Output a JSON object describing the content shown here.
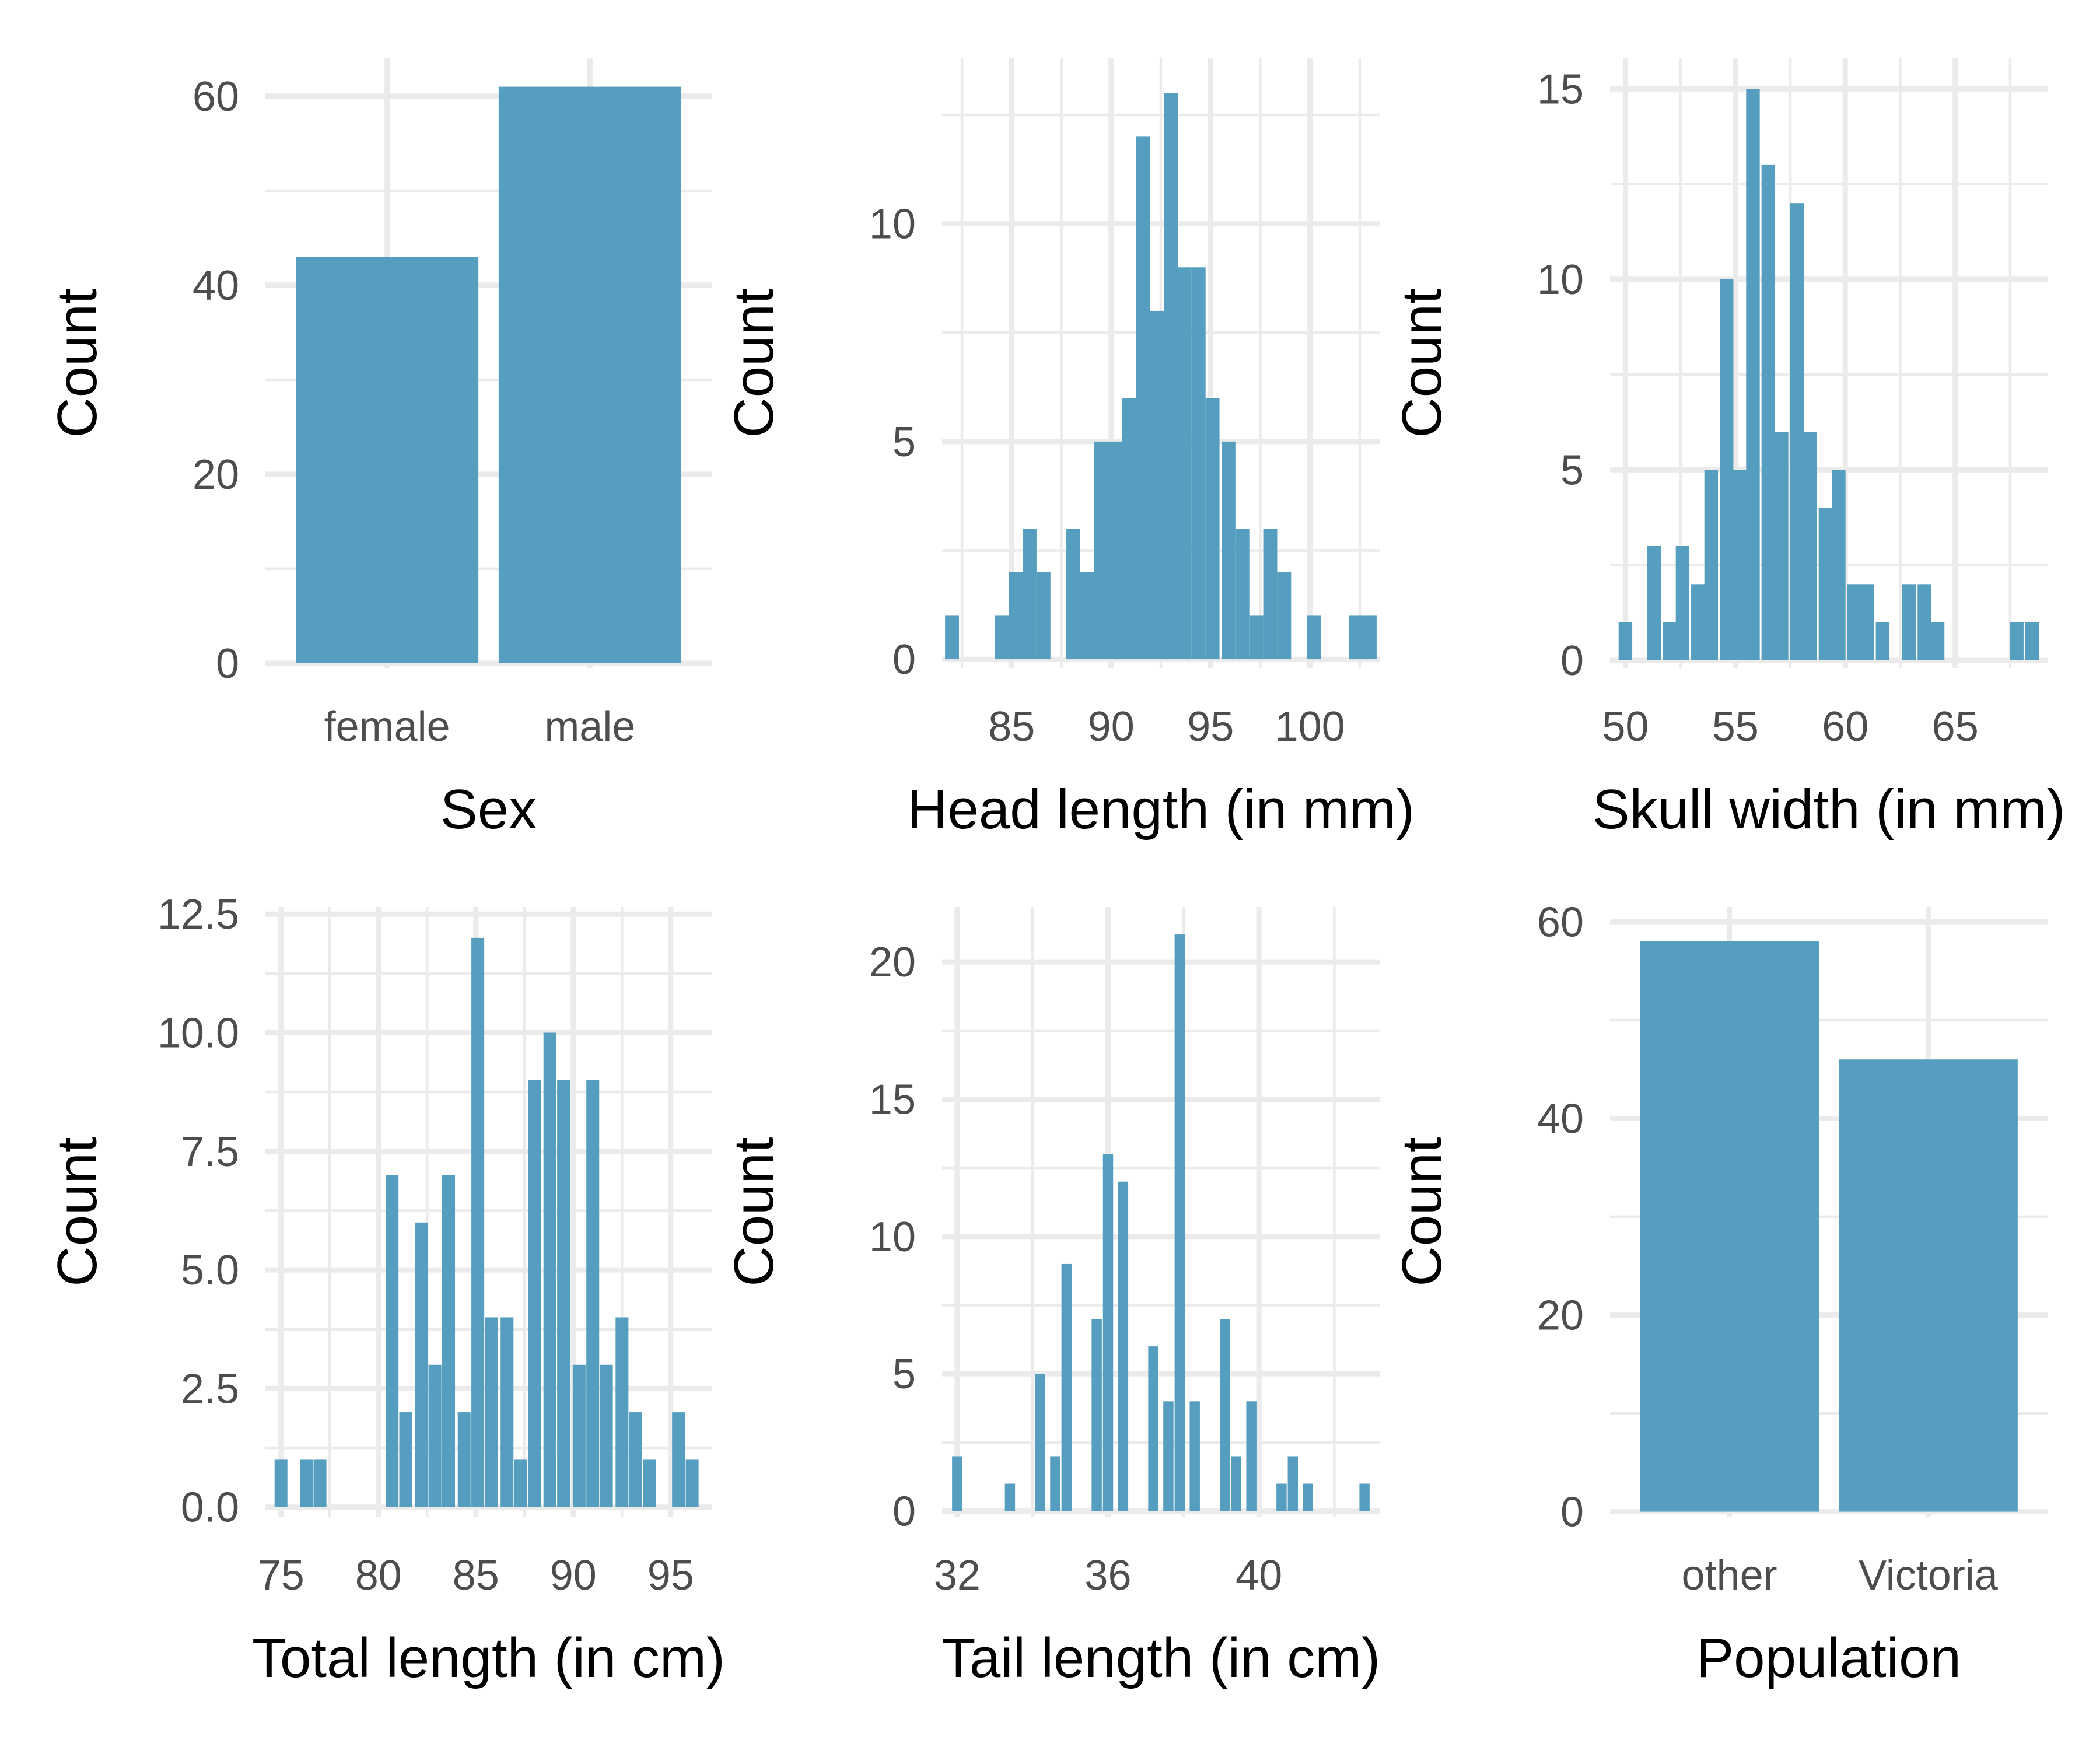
{
  "chart_data": [
    {
      "type": "bar",
      "xlabel": "Sex",
      "ylabel": "Count",
      "categories": [
        "female",
        "male"
      ],
      "values": [
        43,
        61
      ],
      "ylim": [
        -0.5,
        64
      ],
      "yticks": [
        0,
        20,
        40,
        60
      ],
      "yticklabels": [
        "0",
        "20",
        "40",
        "60"
      ],
      "grid": true
    },
    {
      "type": "bar",
      "subtype": "histogram",
      "xlabel": "Head length (in mm)",
      "ylabel": "Count",
      "bins": [
        {
          "x": 82.0,
          "count": 1
        },
        {
          "x": 84.5,
          "count": 1
        },
        {
          "x": 85.2,
          "count": 2
        },
        {
          "x": 85.9,
          "count": 3
        },
        {
          "x": 86.6,
          "count": 2
        },
        {
          "x": 88.1,
          "count": 3
        },
        {
          "x": 88.8,
          "count": 2
        },
        {
          "x": 89.5,
          "count": 5
        },
        {
          "x": 90.2,
          "count": 5
        },
        {
          "x": 90.9,
          "count": 6
        },
        {
          "x": 91.6,
          "count": 12
        },
        {
          "x": 92.3,
          "count": 8
        },
        {
          "x": 93.0,
          "count": 13
        },
        {
          "x": 93.7,
          "count": 9
        },
        {
          "x": 94.4,
          "count": 9
        },
        {
          "x": 95.1,
          "count": 6
        },
        {
          "x": 95.9,
          "count": 5
        },
        {
          "x": 96.6,
          "count": 3
        },
        {
          "x": 97.3,
          "count": 1
        },
        {
          "x": 98.0,
          "count": 3
        },
        {
          "x": 98.7,
          "count": 2
        },
        {
          "x": 100.2,
          "count": 1
        },
        {
          "x": 102.3,
          "count": 1
        },
        {
          "x": 103.0,
          "count": 1
        }
      ],
      "bin_width": 0.7,
      "xlim": [
        81.5,
        103.5
      ],
      "ylim": [
        -0.2,
        13.8
      ],
      "xticks": [
        85,
        90,
        95,
        100
      ],
      "xticklabels": [
        "85",
        "90",
        "95",
        "100"
      ],
      "yticks": [
        0,
        5,
        10
      ],
      "yticklabels": [
        "0",
        "5",
        "10"
      ],
      "grid": true
    },
    {
      "type": "bar",
      "subtype": "histogram",
      "xlabel": "Skull width (in mm)",
      "ylabel": "Count",
      "bins": [
        {
          "x": 50.0,
          "count": 1
        },
        {
          "x": 51.3,
          "count": 3
        },
        {
          "x": 52.0,
          "count": 1
        },
        {
          "x": 52.6,
          "count": 3
        },
        {
          "x": 53.3,
          "count": 2
        },
        {
          "x": 53.9,
          "count": 5
        },
        {
          "x": 54.6,
          "count": 10
        },
        {
          "x": 55.2,
          "count": 5
        },
        {
          "x": 55.8,
          "count": 15
        },
        {
          "x": 56.5,
          "count": 13
        },
        {
          "x": 57.1,
          "count": 6
        },
        {
          "x": 57.8,
          "count": 12
        },
        {
          "x": 58.4,
          "count": 6
        },
        {
          "x": 59.1,
          "count": 4
        },
        {
          "x": 59.7,
          "count": 5
        },
        {
          "x": 60.4,
          "count": 2
        },
        {
          "x": 61.0,
          "count": 2
        },
        {
          "x": 61.7,
          "count": 1
        },
        {
          "x": 62.9,
          "count": 2
        },
        {
          "x": 63.6,
          "count": 2
        },
        {
          "x": 64.2,
          "count": 1
        },
        {
          "x": 67.8,
          "count": 1
        },
        {
          "x": 68.5,
          "count": 1
        }
      ],
      "bin_width": 0.62,
      "xlim": [
        49.3,
        69.2
      ],
      "ylim": [
        -0.2,
        15.8
      ],
      "xticks": [
        50,
        55,
        60,
        65
      ],
      "xticklabels": [
        "50",
        "55",
        "60",
        "65"
      ],
      "yticks": [
        0,
        5,
        10,
        15
      ],
      "yticklabels": [
        "0",
        "5",
        "10",
        "15"
      ],
      "grid": true
    },
    {
      "type": "bar",
      "subtype": "histogram",
      "xlabel": "Total length (in cm)",
      "ylabel": "Count",
      "bins": [
        {
          "x": 75.0,
          "count": 1
        },
        {
          "x": 76.3,
          "count": 1
        },
        {
          "x": 77.0,
          "count": 1
        },
        {
          "x": 80.7,
          "count": 7
        },
        {
          "x": 81.4,
          "count": 2
        },
        {
          "x": 82.2,
          "count": 6
        },
        {
          "x": 82.9,
          "count": 3
        },
        {
          "x": 83.6,
          "count": 7
        },
        {
          "x": 84.4,
          "count": 2
        },
        {
          "x": 85.1,
          "count": 12
        },
        {
          "x": 85.8,
          "count": 4
        },
        {
          "x": 86.6,
          "count": 4
        },
        {
          "x": 87.3,
          "count": 1
        },
        {
          "x": 88.0,
          "count": 9
        },
        {
          "x": 88.8,
          "count": 10
        },
        {
          "x": 89.5,
          "count": 9
        },
        {
          "x": 90.3,
          "count": 3
        },
        {
          "x": 91.0,
          "count": 9
        },
        {
          "x": 91.7,
          "count": 3
        },
        {
          "x": 92.5,
          "count": 4
        },
        {
          "x": 93.2,
          "count": 2
        },
        {
          "x": 93.9,
          "count": 1
        },
        {
          "x": 95.4,
          "count": 2
        },
        {
          "x": 96.1,
          "count": 1
        }
      ],
      "bin_width": 0.66,
      "xlim": [
        74.2,
        97.1
      ],
      "ylim": [
        -0.2,
        12.65
      ],
      "xticks": [
        75,
        80,
        85,
        90,
        95
      ],
      "xticklabels": [
        "75",
        "80",
        "85",
        "90",
        "95"
      ],
      "yticks": [
        0,
        2.5,
        5,
        7.5,
        10,
        12.5
      ],
      "yticklabels": [
        "0.0",
        "2.5",
        "5.0",
        "7.5",
        "10.0",
        "12.5"
      ],
      "grid": true
    },
    {
      "type": "bar",
      "subtype": "histogram",
      "xlabel": "Tail length (in cm)",
      "ylabel": "Count",
      "bins": [
        {
          "x": 32.0,
          "count": 2
        },
        {
          "x": 33.4,
          "count": 1
        },
        {
          "x": 34.2,
          "count": 5
        },
        {
          "x": 34.6,
          "count": 2
        },
        {
          "x": 34.9,
          "count": 9
        },
        {
          "x": 35.7,
          "count": 7
        },
        {
          "x": 36.0,
          "count": 13
        },
        {
          "x": 36.4,
          "count": 12
        },
        {
          "x": 37.2,
          "count": 6
        },
        {
          "x": 37.6,
          "count": 4
        },
        {
          "x": 37.9,
          "count": 21
        },
        {
          "x": 38.3,
          "count": 4
        },
        {
          "x": 39.1,
          "count": 7
        },
        {
          "x": 39.4,
          "count": 2
        },
        {
          "x": 39.8,
          "count": 4
        },
        {
          "x": 40.6,
          "count": 1
        },
        {
          "x": 40.9,
          "count": 2
        },
        {
          "x": 41.3,
          "count": 1
        },
        {
          "x": 42.8,
          "count": 1
        }
      ],
      "bin_width": 0.27,
      "xlim": [
        31.6,
        43.2
      ],
      "ylim": [
        -0.2,
        22.0
      ],
      "xticks": [
        32,
        36,
        40
      ],
      "xticklabels": [
        "32",
        "36",
        "40"
      ],
      "yticks": [
        0,
        5,
        10,
        15,
        20
      ],
      "yticklabels": [
        "0",
        "5",
        "10",
        "15",
        "20"
      ],
      "grid": true
    },
    {
      "type": "bar",
      "xlabel": "Population",
      "ylabel": "Count",
      "categories": [
        "other",
        "Victoria"
      ],
      "values": [
        58,
        46
      ],
      "ylim": [
        -0.5,
        61.5
      ],
      "yticks": [
        0,
        20,
        40,
        60
      ],
      "yticklabels": [
        "0",
        "20",
        "40",
        "60"
      ],
      "grid": true
    }
  ]
}
